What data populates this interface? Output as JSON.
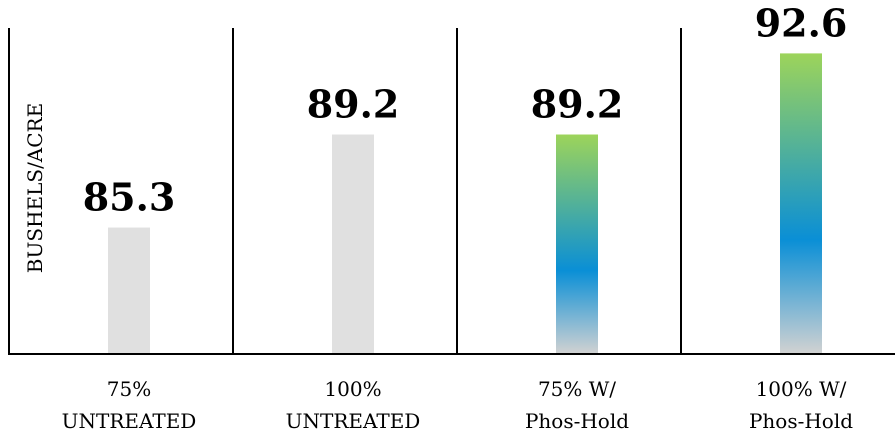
{
  "chart_data": {
    "type": "bar",
    "title": "",
    "xlabel": "",
    "ylabel": "BUSHELS/ACRE",
    "categories": [
      [
        "75%",
        "UNTREATED"
      ],
      [
        "100%",
        "UNTREATED"
      ],
      [
        "75% W/",
        "Phos-Hold"
      ],
      [
        "100% W/",
        "Phos-Hold"
      ]
    ],
    "values": [
      85.3,
      89.2,
      89.2,
      92.6
    ],
    "value_labels": [
      "85.3",
      "89.2",
      "89.2",
      "92.6"
    ],
    "bar_styles": [
      "plain",
      "plain",
      "gradient",
      "gradient"
    ],
    "ylim": [
      80,
      94
    ],
    "grid": false,
    "legend": "none",
    "colors": {
      "plain_bar": "#e0e0e0",
      "gradient_top": "#9dd45a",
      "gradient_mid": "#0a8fd6",
      "gradient_bottom": "#d2d2d2",
      "axis": "#000000"
    }
  }
}
